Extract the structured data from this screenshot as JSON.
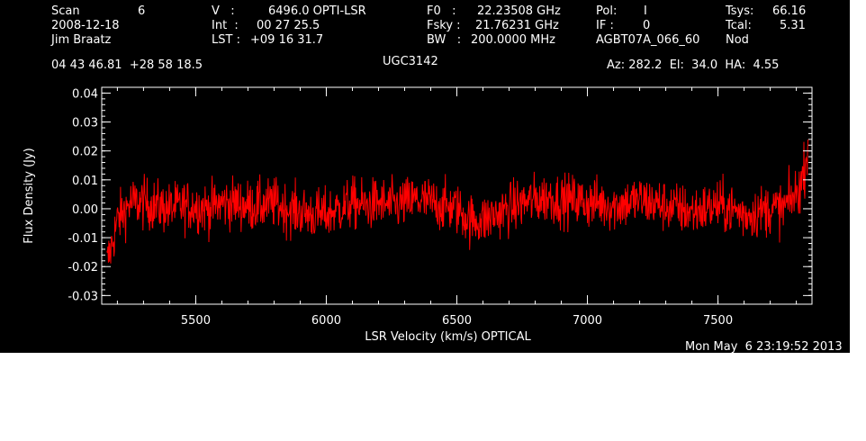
{
  "header": {
    "scan_label": "Scan",
    "scan_value": "6",
    "date": "2008-12-18",
    "observer": "Jim Braatz",
    "v_label": "V   :",
    "v_value": "6496.0 OPTI-LSR",
    "int_label": "Int  :",
    "int_value": "00 27 25.5",
    "lst_label": "LST :",
    "lst_value": "+09 16 31.7",
    "f0_label": "F0   :",
    "f0_value": "22.23508 GHz",
    "fsky_label": "Fsky :",
    "fsky_value": "21.76231 GHz",
    "bw_label": "BW   :",
    "bw_value": "200.0000 MHz",
    "pol_label": "Pol:",
    "pol_value": "I",
    "if_label": "IF :",
    "if_value": "0",
    "project": "AGBT07A_066_60",
    "tsys_label": "Tsys:",
    "tsys_value": "66.16",
    "tcal_label": "Tcal:",
    "tcal_value": "5.31",
    "mode": "Nod",
    "coords": "04 43 46.81  +28 58 18.5",
    "source": "UGC3142",
    "az_el_ha": "Az: 282.2  El:  34.0  HA:  4.55",
    "timestamp": "Mon May  6 23:19:52 2013"
  },
  "chart_data": {
    "type": "line",
    "xlabel": "LSR Velocity (km/s) OPTICAL",
    "ylabel": "Flux Density (Jy)",
    "xlim": [
      5140,
      7860
    ],
    "ylim": [
      -0.033,
      0.042
    ],
    "xticks": [
      5500,
      6000,
      6500,
      7000,
      7500
    ],
    "xtick_labels": [
      "5500",
      "6000",
      "6500",
      "7000",
      "7500"
    ],
    "yticks": [
      -0.03,
      -0.02,
      -0.01,
      0.0,
      0.01,
      0.02,
      0.03,
      0.04
    ],
    "ytick_labels": [
      "-0.03",
      "-0.02",
      "-0.01",
      "0.00",
      "0.01",
      "0.02",
      "0.03",
      "0.04"
    ],
    "line_color": "#ff0000",
    "series": [
      {
        "x": [
          5160,
          5180,
          5200,
          5250,
          5300,
          5350,
          5400,
          5450,
          5500,
          5550,
          5600,
          5650,
          5700,
          5750,
          5800,
          5850,
          5900,
          5950,
          6000,
          6050,
          6100,
          6150,
          6200,
          6250,
          6300,
          6350,
          6400,
          6450,
          6500,
          6550,
          6600,
          6650,
          6700,
          6750,
          6800,
          6850,
          6900,
          6950,
          7000,
          7050,
          7100,
          7150,
          7200,
          7250,
          7300,
          7350,
          7400,
          7450,
          7500,
          7550,
          7600,
          7650,
          7700,
          7750,
          7780,
          7800,
          7820,
          7835,
          7845
        ],
        "values": [
          -0.019,
          -0.012,
          -0.004,
          0.002,
          0.002,
          0.001,
          0.0,
          0.001,
          0.001,
          0.0,
          0.002,
          0.002,
          0.001,
          0.001,
          0.002,
          0.0,
          -0.001,
          -0.002,
          -0.002,
          0.0,
          0.002,
          0.001,
          0.002,
          0.001,
          0.002,
          0.003,
          0.002,
          0.001,
          0.0,
          -0.004,
          -0.004,
          -0.002,
          0.0,
          0.002,
          0.003,
          0.004,
          0.003,
          0.003,
          0.002,
          0.002,
          0.001,
          0.002,
          0.003,
          0.002,
          0.001,
          0.0,
          -0.001,
          0.0,
          0.001,
          0.0,
          -0.002,
          -0.001,
          0.0,
          0.0,
          0.003,
          0.005,
          0.009,
          0.016,
          0.022
        ],
        "noise_rms": 0.0045
      }
    ]
  }
}
